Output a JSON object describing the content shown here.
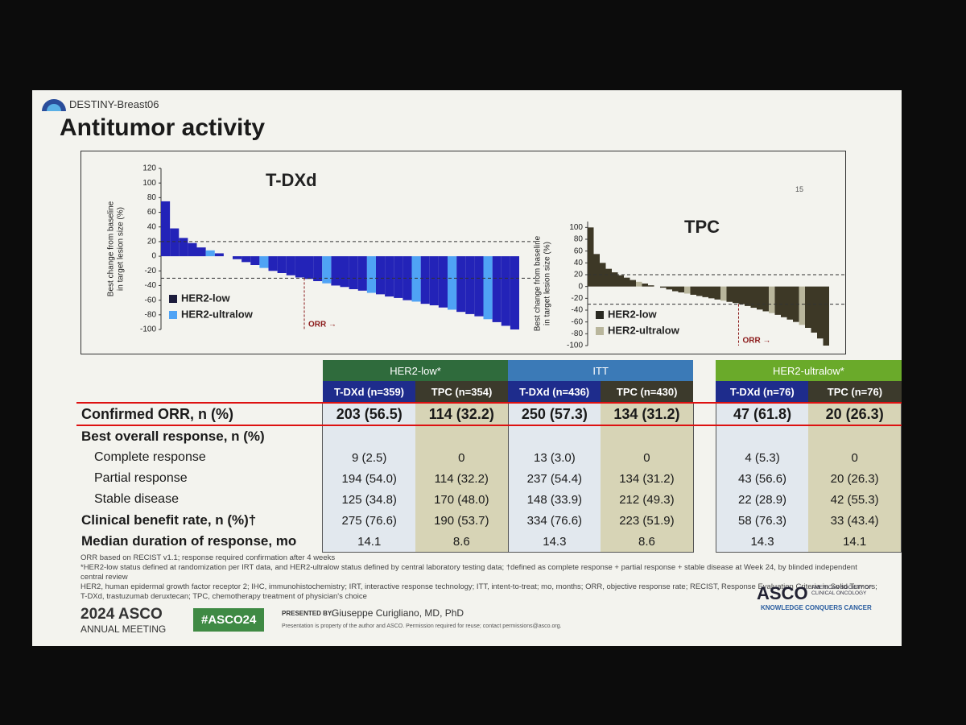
{
  "header": {
    "study": "DESTINY-Breast06",
    "title": "Antitumor activity",
    "page_number": "15"
  },
  "chart_data": [
    {
      "type": "bar",
      "title": "T-DXd",
      "ylabel_lines": [
        "Best change from baseline",
        "in target lesion size (%)"
      ],
      "ylim": [
        -100,
        120
      ],
      "yticks": [
        -100,
        -80,
        -60,
        -40,
        -20,
        0,
        20,
        40,
        60,
        80,
        100,
        120
      ],
      "reference_lines": [
        20,
        -30
      ],
      "annotation": "ORR →",
      "series": [
        {
          "name": "HER2-low",
          "color": "#2323b8",
          "legend_color": "#1c1c3c",
          "x": [
            1,
            2,
            3,
            4,
            5,
            7,
            8,
            9,
            10,
            11,
            13,
            14,
            15,
            16,
            17,
            18,
            20,
            21,
            22,
            23,
            25,
            26,
            27,
            28,
            30,
            31,
            32,
            34,
            35,
            36,
            38,
            39,
            40
          ],
          "values": [
            75,
            38,
            25,
            18,
            12,
            4,
            0,
            -4,
            -8,
            -12,
            -20,
            -23,
            -26,
            -29,
            -31,
            -34,
            -40,
            -42,
            -45,
            -47,
            -52,
            -55,
            -57,
            -60,
            -65,
            -67,
            -70,
            -76,
            -79,
            -82,
            -90,
            -95,
            -100
          ]
        },
        {
          "name": "HER2-ultralow",
          "color": "#4fa3f5",
          "x": [
            6,
            12,
            19,
            24,
            29,
            33,
            37
          ],
          "values": [
            8,
            -16,
            -37,
            -50,
            -62,
            -73,
            -86
          ]
        }
      ]
    },
    {
      "type": "bar",
      "title": "TPC",
      "ylabel_lines": [
        "Best change from baseline",
        "in target lesion size (%)"
      ],
      "ylim": [
        -100,
        110
      ],
      "yticks": [
        -100,
        -80,
        -60,
        -40,
        -20,
        0,
        20,
        40,
        60,
        80,
        100
      ],
      "reference_lines": [
        20,
        -30
      ],
      "annotation": "ORR →",
      "series": [
        {
          "name": "HER2-low",
          "color": "#3d3826",
          "legend_color": "#2a2a22",
          "x": [
            1,
            2,
            3,
            4,
            5,
            6,
            7,
            8,
            10,
            11,
            12,
            13,
            14,
            15,
            16,
            18,
            19,
            20,
            21,
            22,
            24,
            25,
            26,
            27,
            28,
            29,
            30,
            32,
            33,
            34,
            35,
            37,
            38,
            39,
            40
          ],
          "values": [
            100,
            55,
            40,
            30,
            24,
            19,
            15,
            11,
            5,
            2,
            0,
            -2,
            -5,
            -8,
            -10,
            -14,
            -16,
            -18,
            -20,
            -22,
            -26,
            -28,
            -30,
            -33,
            -36,
            -39,
            -42,
            -48,
            -52,
            -56,
            -60,
            -70,
            -78,
            -88,
            -100
          ]
        },
        {
          "name": "HER2-ultralow",
          "color": "#b9b69c",
          "x": [
            9,
            17,
            23,
            31,
            36
          ],
          "values": [
            8,
            -12,
            -24,
            -45,
            -65
          ]
        }
      ]
    }
  ],
  "table": {
    "groups": [
      {
        "name": "HER2-low*",
        "columns": [
          "T-DXd (n=359)",
          "TPC (n=354)"
        ]
      },
      {
        "name": "ITT",
        "columns": [
          "T-DXd (n=436)",
          "TPC (n=430)"
        ]
      },
      {
        "name": "HER2-ultralow*",
        "columns": [
          "T-DXd (n=76)",
          "TPC (n=76)"
        ]
      }
    ],
    "rows": [
      {
        "label": "Confirmed ORR, n (%)",
        "cells": [
          "203 (56.5)",
          "114 (32.2)",
          "250 (57.3)",
          "134 (31.2)",
          "47 (61.8)",
          "20 (26.3)"
        ]
      },
      {
        "label": "Best overall response, n (%)"
      },
      {
        "label": "Complete response",
        "cells": [
          "9 (2.5)",
          "0",
          "13 (3.0)",
          "0",
          "4 (5.3)",
          "0"
        ]
      },
      {
        "label": "Partial response",
        "cells": [
          "194 (54.0)",
          "114 (32.2)",
          "237 (54.4)",
          "134 (31.2)",
          "43 (56.6)",
          "20 (26.3)"
        ]
      },
      {
        "label": "Stable disease",
        "cells": [
          "125 (34.8)",
          "170 (48.0)",
          "148 (33.9)",
          "212 (49.3)",
          "22 (28.9)",
          "42 (55.3)"
        ]
      },
      {
        "label": "Clinical benefit rate, n (%)†",
        "cells": [
          "275 (76.6)",
          "190 (53.7)",
          "334 (76.6)",
          "223 (51.9)",
          "58 (76.3)",
          "33 (43.4)"
        ]
      },
      {
        "label": "Median duration of response, mo",
        "cells": [
          "14.1",
          "8.6",
          "14.3",
          "8.6",
          "14.3",
          "14.1"
        ]
      }
    ]
  },
  "footnotes": [
    "ORR based on RECIST v1.1; response required confirmation after 4 weeks",
    "*HER2-low status defined at randomization per IRT data, and HER2-ultralow status defined by central laboratory testing data; †defined as complete response + partial response + stable disease at Week 24, by blinded independent central review",
    "HER2, human epidermal growth factor receptor 2; IHC, immunohistochemistry; IRT, interactive response technology; ITT, intent-to-treat; mo, months; ORR, objective response rate; RECIST, Response Evaluation Criteria in Solid Tumors;",
    "T-DXd, trastuzumab deruxtecan; TPC, chemotherapy treatment of physician's choice"
  ],
  "footer": {
    "meeting_year": "2024 ASCO",
    "meeting_name": "ANNUAL MEETING",
    "hashtag": "#ASCO24",
    "presented_by": "PRESENTED BY:",
    "presenter": "Giuseppe Curigliano, MD, PhD",
    "notice": "Presentation is property of the author and ASCO. Permission required for reuse; contact permissions@asco.org.",
    "org": "ASCO",
    "org_full": "AMERICAN SOCIETY OF CLINICAL ONCOLOGY",
    "tagline": "KNOWLEDGE CONQUERS CANCER"
  }
}
